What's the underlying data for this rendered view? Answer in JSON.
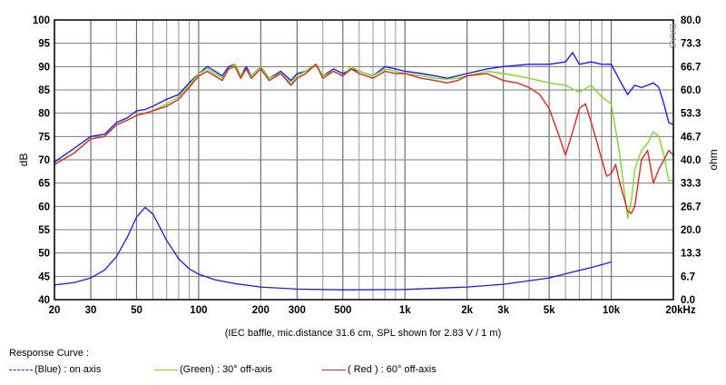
{
  "chart_data": {
    "type": "line",
    "xlabel": "",
    "ylabel": "dB",
    "y2label": "ohm",
    "xscale": "log",
    "xlim": [
      20,
      20000
    ],
    "ylim": [
      40,
      100
    ],
    "y2lim": [
      0,
      80
    ],
    "x_ticks": [
      {
        "v": 20,
        "label": "20"
      },
      {
        "v": 30,
        "label": "30"
      },
      {
        "v": 50,
        "label": "50"
      },
      {
        "v": 100,
        "label": "100"
      },
      {
        "v": 200,
        "label": "200"
      },
      {
        "v": 300,
        "label": "300"
      },
      {
        "v": 500,
        "label": "500"
      },
      {
        "v": 1000,
        "label": "1k"
      },
      {
        "v": 2000,
        "label": "2k"
      },
      {
        "v": 3000,
        "label": "3k"
      },
      {
        "v": 5000,
        "label": "5k"
      },
      {
        "v": 10000,
        "label": "10k"
      },
      {
        "v": 20000,
        "label": "20kHz"
      }
    ],
    "y_ticks": [
      40,
      45,
      50,
      55,
      60,
      65,
      70,
      75,
      80,
      85,
      90,
      95,
      100
    ],
    "y2_ticks": [
      "0.0",
      "6.7",
      "13.3",
      "20.0",
      "26.7",
      "33.3",
      "40.0",
      "46.7",
      "53.3",
      "60.0",
      "66.7",
      "73.3",
      "80.0"
    ],
    "watermark": "DAAS",
    "grid": true,
    "legend_placement": "bottom",
    "series": [
      {
        "name": "(Blue)  : on axis",
        "color": "#1a1aff",
        "axis": "dB",
        "x": [
          20,
          25,
          30,
          35,
          40,
          45,
          50,
          55,
          60,
          70,
          80,
          90,
          100,
          110,
          120,
          130,
          140,
          150,
          160,
          170,
          180,
          200,
          220,
          250,
          280,
          300,
          330,
          370,
          400,
          450,
          500,
          550,
          600,
          700,
          800,
          900,
          1000,
          1200,
          1400,
          1600,
          1800,
          2000,
          2500,
          3000,
          4000,
          5000,
          6000,
          6500,
          7000,
          8000,
          9000,
          10000,
          11000,
          12000,
          13000,
          14000,
          15000,
          16000,
          17000,
          18000,
          19000,
          20000
        ],
        "y": [
          69.5,
          72.5,
          75,
          75.5,
          78,
          79,
          80.5,
          80.8,
          81.5,
          83,
          84,
          86.5,
          88.5,
          90,
          89,
          88,
          90,
          90.5,
          88,
          90,
          88,
          90,
          87.5,
          89,
          87,
          88.5,
          89,
          90.5,
          88,
          89.5,
          88.5,
          89.5,
          89,
          88,
          90,
          89.5,
          89,
          88.5,
          88,
          87.5,
          88,
          88.5,
          89.5,
          90,
          90.5,
          90.5,
          91,
          93,
          90.5,
          91,
          90.5,
          90.5,
          87,
          84,
          86,
          85.5,
          86,
          86.5,
          85.5,
          82,
          78,
          77.5
        ]
      },
      {
        "name": "(Green) : 30° off-axis",
        "color": "#7ddc1f",
        "axis": "dB",
        "x": [
          20,
          25,
          30,
          35,
          40,
          45,
          50,
          55,
          60,
          70,
          80,
          90,
          100,
          110,
          120,
          130,
          140,
          150,
          160,
          170,
          180,
          200,
          220,
          250,
          280,
          300,
          330,
          370,
          400,
          450,
          500,
          550,
          600,
          700,
          800,
          900,
          1000,
          1200,
          1400,
          1600,
          1800,
          2000,
          2500,
          3000,
          3500,
          4000,
          5000,
          6000,
          7000,
          8000,
          9000,
          10000,
          11000,
          11500,
          12000,
          12500,
          13000,
          14000,
          15000,
          16000,
          17000,
          18000,
          19000,
          20000
        ],
        "y": [
          69,
          71.5,
          74.5,
          75,
          77.5,
          78.5,
          79.5,
          80,
          80.5,
          82,
          83.5,
          86,
          88.5,
          89.5,
          88.5,
          87.5,
          89.5,
          90.5,
          88,
          89.5,
          88,
          90,
          87.5,
          88.5,
          86.5,
          88,
          89,
          90.5,
          88,
          89,
          88,
          90,
          89,
          88,
          89.5,
          89,
          88.5,
          88,
          87.5,
          87.3,
          87.5,
          88,
          89,
          88.5,
          88,
          87.5,
          86.5,
          86,
          84.5,
          86,
          83.5,
          82,
          71,
          64,
          57.5,
          61,
          68,
          72,
          73.5,
          76,
          75,
          71,
          65.5,
          65.5
        ]
      },
      {
        "name": "( Red ) : 60° off-axis",
        "color": "#e0261c",
        "axis": "dB",
        "x": [
          20,
          25,
          30,
          35,
          40,
          45,
          50,
          55,
          60,
          70,
          80,
          90,
          100,
          110,
          120,
          130,
          140,
          150,
          160,
          170,
          180,
          200,
          220,
          250,
          280,
          300,
          330,
          370,
          400,
          450,
          500,
          550,
          600,
          700,
          800,
          900,
          1000,
          1200,
          1400,
          1600,
          1800,
          2000,
          2500,
          3000,
          3500,
          4000,
          4500,
          5000,
          5500,
          6000,
          6500,
          7000,
          7500,
          8000,
          8500,
          9000,
          9500,
          10000,
          10500,
          11000,
          11500,
          12000,
          12500,
          13000,
          14000,
          15000,
          16000,
          17000,
          18000,
          19000,
          20000
        ],
        "y": [
          69,
          71.5,
          74.5,
          75,
          77.5,
          78.5,
          79.5,
          80,
          80.5,
          81.5,
          83,
          85.5,
          88,
          89,
          88,
          87,
          89.5,
          90,
          87.5,
          89.5,
          87.5,
          89.5,
          87,
          88.5,
          86,
          87.5,
          88.5,
          90.5,
          87.5,
          89,
          88,
          89.5,
          88.5,
          87.5,
          89,
          88.5,
          88.5,
          87.5,
          87,
          86.5,
          87,
          88,
          88.5,
          87,
          86.5,
          85.5,
          84,
          81,
          76,
          71,
          76,
          81,
          82,
          78,
          74,
          70,
          66.5,
          67,
          69,
          65,
          62,
          59,
          58.5,
          60,
          70,
          72,
          65,
          68,
          70,
          72,
          71
        ]
      },
      {
        "name": "impedance",
        "color": "#1a1aff",
        "axis": "ohm",
        "x": [
          20,
          25,
          30,
          35,
          40,
          45,
          50,
          55,
          60,
          65,
          70,
          80,
          90,
          100,
          120,
          150,
          200,
          300,
          500,
          1000,
          2000,
          3000,
          5000,
          7000,
          8000,
          9000,
          10000
        ],
        "y": [
          4.2,
          4.9,
          6.2,
          8.5,
          12.3,
          17.8,
          23.6,
          26.4,
          24.5,
          20.6,
          16.9,
          11.7,
          8.8,
          7.3,
          5.7,
          4.6,
          3.6,
          3.0,
          2.8,
          2.9,
          3.6,
          4.4,
          6.2,
          8.4,
          9.2,
          10.0,
          10.8
        ]
      }
    ]
  },
  "caption": "(IEC baffle, mic.distance 31.6 cm, SPL shown for 2.83 V / 1 m)",
  "legend": {
    "title": "Response Curve :",
    "items": [
      {
        "label": "(Blue)  : on axis",
        "color": "#1a1aff"
      },
      {
        "label": "(Green) : 30° off-axis",
        "color": "#7ddc1f"
      },
      {
        "label": "( Red ) : 60° off-axis",
        "color": "#e0261c"
      }
    ]
  }
}
